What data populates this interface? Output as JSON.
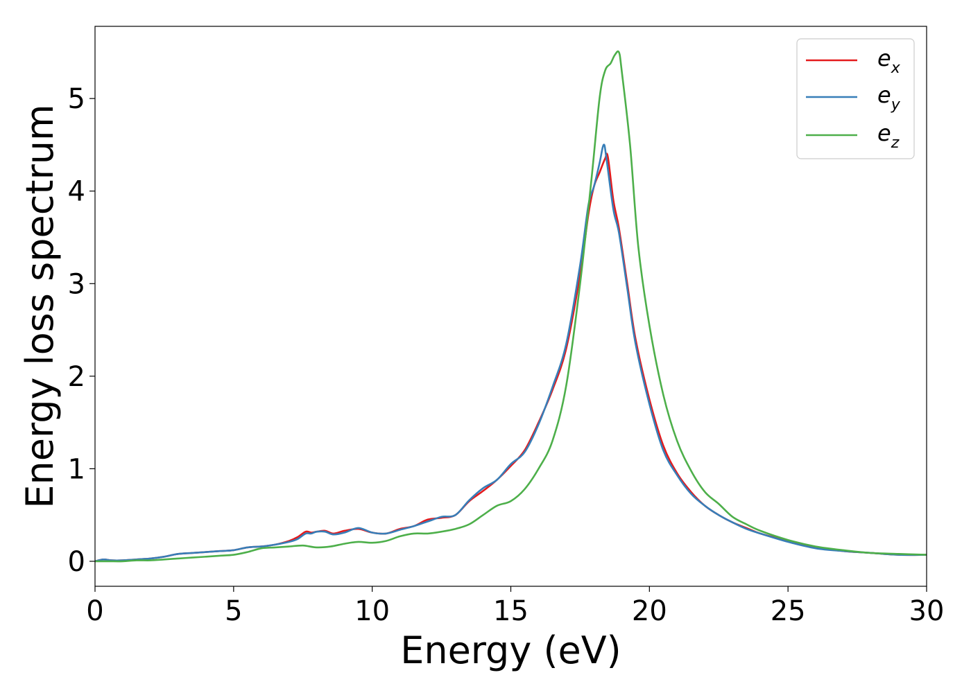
{
  "chart_data": {
    "type": "line",
    "title": "",
    "xlabel": "Energy (eV)",
    "ylabel": "Energy loss spectrum",
    "xlim": [
      0,
      30
    ],
    "ylim": [
      -0.27,
      5.78
    ],
    "xticks": [
      "0",
      "5",
      "10",
      "15",
      "20",
      "25",
      "30"
    ],
    "yticks": [
      "0",
      "1",
      "2",
      "3",
      "4",
      "5"
    ],
    "grid": false,
    "legend_position": "top-right",
    "series": [
      {
        "name": "e_x",
        "label_base": "e",
        "label_sub": "x",
        "color": "#e41a1c",
        "x": [
          0,
          0.3,
          0.6,
          1.0,
          1.5,
          2.0,
          2.5,
          3.0,
          3.5,
          4.0,
          4.5,
          5.0,
          5.5,
          6.0,
          6.5,
          7.0,
          7.3,
          7.6,
          7.8,
          8.0,
          8.3,
          8.6,
          9.0,
          9.5,
          10.0,
          10.5,
          11.0,
          11.5,
          12.0,
          12.5,
          13.0,
          13.5,
          14.0,
          14.5,
          15.0,
          15.5,
          16.0,
          16.5,
          17.0,
          17.5,
          17.8,
          18.0,
          18.2,
          18.4,
          18.5,
          18.7,
          18.9,
          19.2,
          19.5,
          20.0,
          20.5,
          21.0,
          21.5,
          22.0,
          22.5,
          23.0,
          23.5,
          24.0,
          25.0,
          26.0,
          27.0,
          28.0,
          29.0,
          30.0
        ],
        "y": [
          0.0,
          0.02,
          0.01,
          0.01,
          0.02,
          0.03,
          0.05,
          0.08,
          0.09,
          0.1,
          0.11,
          0.12,
          0.15,
          0.16,
          0.18,
          0.22,
          0.26,
          0.32,
          0.31,
          0.32,
          0.33,
          0.3,
          0.33,
          0.35,
          0.31,
          0.3,
          0.35,
          0.38,
          0.45,
          0.47,
          0.5,
          0.65,
          0.76,
          0.88,
          1.03,
          1.2,
          1.5,
          1.85,
          2.3,
          3.1,
          3.75,
          4.05,
          4.2,
          4.35,
          4.37,
          3.9,
          3.6,
          3.0,
          2.4,
          1.75,
          1.25,
          0.95,
          0.75,
          0.6,
          0.5,
          0.42,
          0.36,
          0.3,
          0.22,
          0.15,
          0.11,
          0.09,
          0.07,
          0.07
        ]
      },
      {
        "name": "e_y",
        "label_base": "e",
        "label_sub": "y",
        "color": "#377eb8",
        "x": [
          0,
          0.3,
          0.6,
          1.0,
          1.5,
          2.0,
          2.5,
          3.0,
          3.5,
          4.0,
          4.5,
          5.0,
          5.5,
          6.0,
          6.5,
          7.0,
          7.3,
          7.6,
          7.8,
          8.0,
          8.3,
          8.6,
          9.0,
          9.5,
          10.0,
          10.5,
          11.0,
          11.5,
          12.0,
          12.5,
          13.0,
          13.5,
          14.0,
          14.5,
          15.0,
          15.5,
          16.0,
          16.5,
          17.0,
          17.5,
          17.8,
          18.0,
          18.2,
          18.35,
          18.45,
          18.7,
          18.9,
          19.2,
          19.5,
          20.0,
          20.5,
          21.0,
          21.5,
          22.0,
          22.5,
          23.0,
          23.5,
          24.0,
          25.0,
          26.0,
          27.0,
          28.0,
          29.0,
          30.0
        ],
        "y": [
          0.0,
          0.02,
          0.01,
          0.01,
          0.02,
          0.03,
          0.05,
          0.08,
          0.09,
          0.1,
          0.11,
          0.12,
          0.15,
          0.16,
          0.18,
          0.21,
          0.24,
          0.3,
          0.3,
          0.32,
          0.32,
          0.29,
          0.31,
          0.36,
          0.31,
          0.3,
          0.34,
          0.38,
          0.43,
          0.48,
          0.5,
          0.66,
          0.79,
          0.88,
          1.05,
          1.18,
          1.48,
          1.88,
          2.35,
          3.2,
          3.85,
          4.05,
          4.3,
          4.5,
          4.35,
          3.8,
          3.55,
          2.95,
          2.35,
          1.7,
          1.2,
          0.93,
          0.73,
          0.6,
          0.5,
          0.42,
          0.35,
          0.3,
          0.21,
          0.14,
          0.11,
          0.09,
          0.07,
          0.07
        ]
      },
      {
        "name": "e_z",
        "label_base": "e",
        "label_sub": "z",
        "color": "#4daf4a",
        "x": [
          0,
          0.5,
          1.0,
          1.5,
          2.0,
          2.5,
          3.0,
          3.5,
          4.0,
          4.5,
          5.0,
          5.5,
          6.0,
          6.5,
          7.0,
          7.5,
          8.0,
          8.5,
          9.0,
          9.5,
          10.0,
          10.5,
          11.0,
          11.5,
          12.0,
          12.5,
          13.0,
          13.5,
          14.0,
          14.5,
          15.0,
          15.5,
          16.0,
          16.5,
          17.0,
          17.5,
          17.9,
          18.2,
          18.4,
          18.6,
          18.75,
          18.9,
          19.0,
          19.3,
          19.6,
          20.0,
          20.5,
          21.0,
          21.5,
          22.0,
          22.5,
          23.0,
          23.5,
          24.0,
          25.0,
          26.0,
          27.0,
          28.0,
          29.0,
          30.0
        ],
        "y": [
          0.0,
          0.0,
          0.0,
          0.01,
          0.01,
          0.02,
          0.03,
          0.04,
          0.05,
          0.06,
          0.07,
          0.1,
          0.14,
          0.15,
          0.16,
          0.17,
          0.15,
          0.16,
          0.19,
          0.21,
          0.2,
          0.22,
          0.27,
          0.3,
          0.3,
          0.32,
          0.35,
          0.4,
          0.5,
          0.6,
          0.65,
          0.78,
          1.0,
          1.3,
          1.9,
          3.0,
          4.1,
          5.0,
          5.3,
          5.38,
          5.47,
          5.5,
          5.3,
          4.5,
          3.4,
          2.55,
          1.8,
          1.3,
          0.98,
          0.75,
          0.62,
          0.48,
          0.4,
          0.33,
          0.23,
          0.16,
          0.12,
          0.09,
          0.08,
          0.07
        ]
      }
    ]
  }
}
